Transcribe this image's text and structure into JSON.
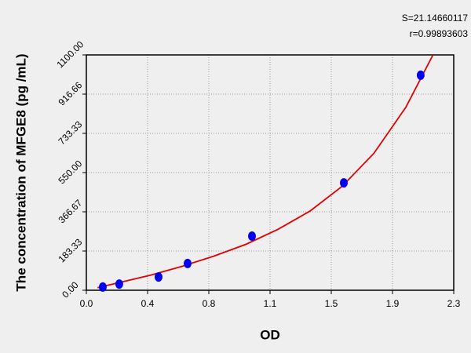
{
  "chart_data": {
    "type": "scatter",
    "annotations": [
      "S=21.14660117",
      "r=0.99893603"
    ],
    "x_label": "OD",
    "y_label": "The concentration of MFGE8 (pg /mL)",
    "x": [
      0.103,
      0.206,
      0.452,
      0.634,
      1.037,
      1.612,
      2.093
    ],
    "values": [
      15,
      29,
      62,
      125,
      253,
      502,
      1005
    ],
    "color": "#0000ee",
    "curve": {
      "x": [
        0.07,
        0.2,
        0.4,
        0.6,
        0.8,
        1.0,
        1.2,
        1.4,
        1.6,
        1.8,
        2.0,
        2.17
      ],
      "values": [
        12,
        35,
        70,
        112,
        160,
        215,
        285,
        370,
        485,
        640,
        855,
        1100
      ],
      "color": "#e00000"
    },
    "xlim": [
      0,
      2.3
    ],
    "xticks": [
      {
        "value": 0,
        "label": "0.0"
      },
      {
        "value": 0.3833,
        "label": "0.4"
      },
      {
        "value": 0.7667,
        "label": "0.8"
      },
      {
        "value": 1.15,
        "label": "1.1"
      },
      {
        "value": 1.5333,
        "label": "1.5"
      },
      {
        "value": 1.9167,
        "label": "1.9"
      },
      {
        "value": 2.3,
        "label": "2.3"
      }
    ],
    "ylim": [
      0,
      1100
    ],
    "yticks": [
      {
        "value": 0,
        "label": "0.00"
      },
      {
        "value": 183.33,
        "label": "183.33"
      },
      {
        "value": 366.67,
        "label": "366.67"
      },
      {
        "value": 550,
        "label": "550.00"
      },
      {
        "value": 733.33,
        "label": "733.33"
      },
      {
        "value": 916.66,
        "label": "916.66"
      },
      {
        "value": 1100,
        "label": "1100.00"
      }
    ],
    "grid": true
  }
}
